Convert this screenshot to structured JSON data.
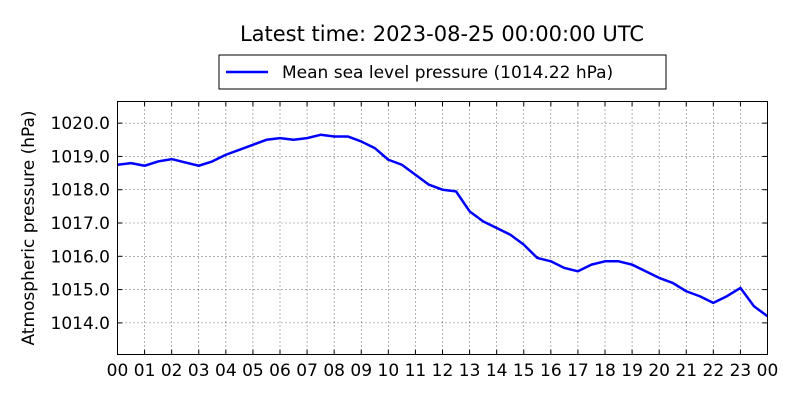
{
  "chart_data": {
    "type": "line",
    "title": "Latest time: 2023-08-25 00:00:00 UTC",
    "xlabel": "",
    "ylabel": "Atmospheric pressure (hPa)",
    "xlim": [
      0,
      24
    ],
    "ylim": [
      1013.05,
      1020.65
    ],
    "x_ticks": [
      "00",
      "01",
      "02",
      "03",
      "04",
      "05",
      "06",
      "07",
      "08",
      "09",
      "10",
      "11",
      "12",
      "13",
      "14",
      "15",
      "16",
      "17",
      "18",
      "19",
      "20",
      "21",
      "22",
      "23",
      "00"
    ],
    "y_ticks": [
      "1014.0",
      "1015.0",
      "1016.0",
      "1017.0",
      "1018.0",
      "1019.0",
      "1020.0"
    ],
    "grid": true,
    "legend_position": "top-center",
    "series": [
      {
        "name": "Mean sea level pressure (1014.22 hPa)",
        "color": "#0000ff",
        "x": [
          0,
          0.5,
          1,
          1.5,
          2,
          2.5,
          3,
          3.5,
          4,
          4.5,
          5,
          5.5,
          6,
          6.5,
          7,
          7.5,
          8,
          8.5,
          9,
          9.5,
          10,
          10.5,
          11,
          11.5,
          12,
          12.5,
          13,
          13.5,
          14,
          14.5,
          15,
          15.5,
          16,
          16.5,
          17,
          17.5,
          18,
          18.5,
          19,
          19.5,
          20,
          20.5,
          21,
          21.5,
          22,
          22.5,
          23,
          23.5,
          24
        ],
        "y": [
          1018.75,
          1018.8,
          1018.72,
          1018.85,
          1018.92,
          1018.82,
          1018.72,
          1018.85,
          1019.05,
          1019.2,
          1019.35,
          1019.5,
          1019.55,
          1019.5,
          1019.55,
          1019.65,
          1019.6,
          1019.6,
          1019.45,
          1019.25,
          1018.9,
          1018.75,
          1018.45,
          1018.15,
          1018.0,
          1017.95,
          1017.35,
          1017.05,
          1016.85,
          1016.65,
          1016.35,
          1015.95,
          1015.85,
          1015.65,
          1015.55,
          1015.75,
          1015.85,
          1015.85,
          1015.75,
          1015.55,
          1015.35,
          1015.2,
          1014.95,
          1014.8,
          1014.6,
          1014.8,
          1015.05,
          1014.5,
          1014.2
        ]
      }
    ]
  }
}
